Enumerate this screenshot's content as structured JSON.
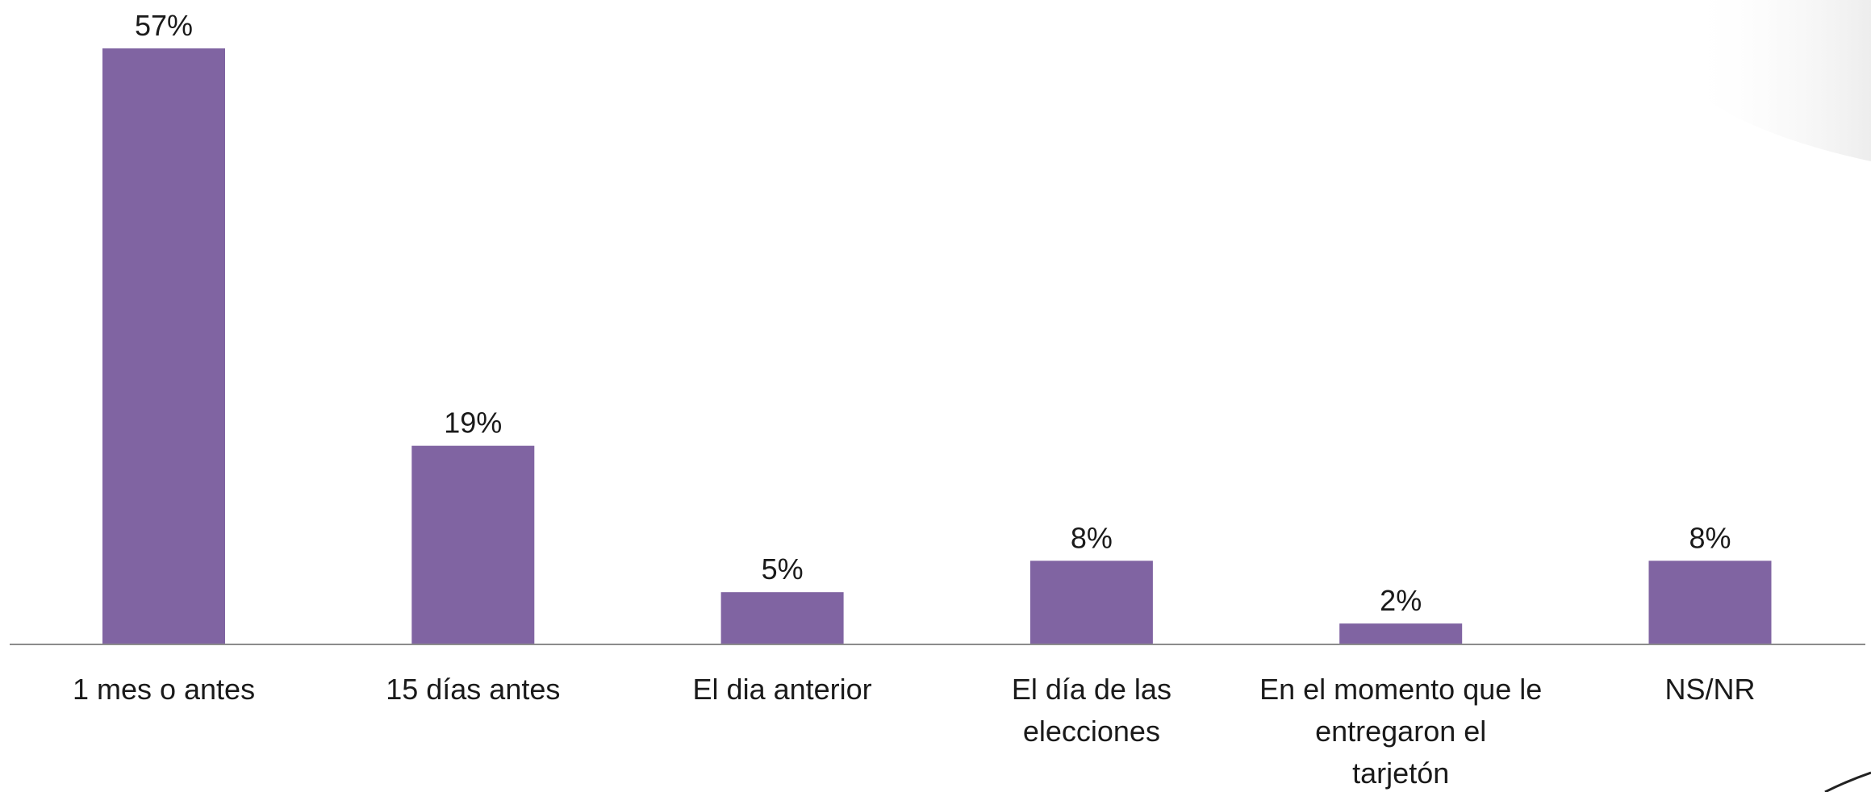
{
  "chart_data": {
    "type": "bar",
    "categories": [
      "1 mes o antes",
      "15 días antes",
      "El dia anterior",
      "El día de las elecciones",
      "En el momento que le entregaron el tarjetón",
      "NS/NR"
    ],
    "category_lines": [
      [
        "1 mes o antes"
      ],
      [
        "15 días antes"
      ],
      [
        "El dia anterior"
      ],
      [
        "El día de las",
        "elecciones"
      ],
      [
        "En el momento que le",
        "entregaron el",
        "tarjetón"
      ],
      [
        "NS/NR"
      ]
    ],
    "values": [
      57,
      19,
      5,
      8,
      2,
      8
    ],
    "value_labels": [
      "57%",
      "19%",
      "5%",
      "8%",
      "2%",
      "8%"
    ],
    "title": "",
    "xlabel": "",
    "ylabel": "",
    "ylim": [
      0,
      57
    ],
    "grid": false,
    "legend": "none",
    "bar_color": "#8064A2"
  }
}
